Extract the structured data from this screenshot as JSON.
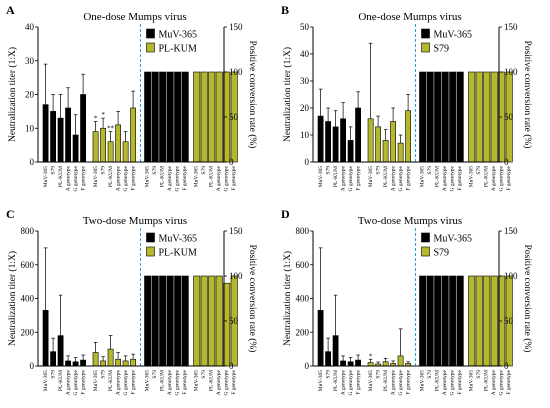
{
  "colors": {
    "black_bar": "#000000",
    "olive_bar": "#b5b82c",
    "divider": "#29a3d6",
    "axis": "#000000"
  },
  "chart_data": [
    {
      "panel": "A",
      "type": "bar",
      "title": "One-dose Mumps virus",
      "ylabel": "Neutralization titer (1:X)",
      "y2label": "Positive conversion rate (%)",
      "ylim": [
        0,
        40
      ],
      "yticks": [
        0,
        10,
        20,
        30,
        40
      ],
      "y2lim": [
        0,
        150
      ],
      "y2ticks": [
        0,
        50,
        100,
        150
      ],
      "legend": [
        "MuV-365",
        "PL-KUM"
      ],
      "categories": [
        "MuV-365",
        "S79",
        "PL-KUM",
        "A genotype",
        "G genotype",
        "F genotype"
      ],
      "titer_series": [
        {
          "name": "MuV-365",
          "values": [
            17,
            15,
            13,
            16,
            8,
            20
          ],
          "errors": [
            12,
            5,
            7,
            6,
            6,
            6
          ]
        },
        {
          "name": "PL-KUM",
          "values": [
            9,
            10,
            6,
            11,
            6,
            16
          ],
          "errors": [
            3,
            3,
            3,
            4,
            3,
            5
          ],
          "marks": [
            "*",
            "*",
            "**",
            "",
            "",
            ""
          ]
        }
      ],
      "conversion_series": [
        {
          "name": "MuV-365",
          "values": [
            100,
            100,
            100,
            100,
            100,
            100
          ]
        },
        {
          "name": "PL-KUM",
          "values": [
            100,
            100,
            100,
            100,
            100,
            100
          ]
        }
      ]
    },
    {
      "panel": "B",
      "type": "bar",
      "title": "One-dose Mumps virus",
      "ylabel": "Neutralization titer (1:X)",
      "y2label": "Positive conversion rate (%)",
      "ylim": [
        0,
        50
      ],
      "yticks": [
        0,
        10,
        20,
        30,
        40,
        50
      ],
      "y2lim": [
        0,
        150
      ],
      "y2ticks": [
        0,
        50,
        100,
        150
      ],
      "legend": [
        "MuV-365",
        "S79"
      ],
      "categories": [
        "MuV-365",
        "S79",
        "PL-KUM",
        "A genotype",
        "G genotype",
        "F genotype"
      ],
      "titer_series": [
        {
          "name": "MuV-365",
          "values": [
            17,
            15,
            13,
            16,
            8,
            20
          ],
          "errors": [
            10,
            5,
            6,
            6,
            5,
            6
          ]
        },
        {
          "name": "S79",
          "values": [
            16,
            13,
            8,
            15,
            7,
            19
          ],
          "errors": [
            28,
            4,
            4,
            5,
            3,
            6
          ],
          "marks": [
            "",
            "",
            "",
            "",
            "",
            ""
          ]
        }
      ],
      "conversion_series": [
        {
          "name": "MuV-365",
          "values": [
            100,
            100,
            100,
            100,
            100,
            100
          ]
        },
        {
          "name": "S79",
          "values": [
            100,
            100,
            100,
            100,
            100,
            100
          ]
        }
      ]
    },
    {
      "panel": "C",
      "type": "bar",
      "title": "Two-dose Mumps virus",
      "ylabel": "Neutralization titer (1:X)",
      "y2label": "Positive conversion rate (%)",
      "ylim": [
        0,
        800
      ],
      "yticks": [
        0,
        200,
        400,
        600,
        800
      ],
      "y2lim": [
        0,
        150
      ],
      "y2ticks": [
        0,
        50,
        100,
        150
      ],
      "legend": [
        "MuV-365",
        "PL-KUM"
      ],
      "categories": [
        "MuV-365",
        "S79",
        "PL-KUM",
        "A genotype",
        "G genotype",
        "F genotype"
      ],
      "titer_series": [
        {
          "name": "MuV-365",
          "values": [
            330,
            85,
            180,
            30,
            25,
            35
          ],
          "errors": [
            370,
            80,
            240,
            30,
            25,
            30
          ]
        },
        {
          "name": "PL-KUM",
          "values": [
            80,
            30,
            100,
            40,
            30,
            40
          ],
          "errors": [
            60,
            25,
            80,
            40,
            30,
            30
          ],
          "marks": [
            "",
            "",
            "",
            "",
            "",
            ""
          ]
        }
      ],
      "conversion_series": [
        {
          "name": "MuV-365",
          "values": [
            100,
            100,
            100,
            100,
            100,
            100
          ]
        },
        {
          "name": "PL-KUM",
          "values": [
            100,
            100,
            100,
            100,
            92,
            100
          ]
        }
      ]
    },
    {
      "panel": "D",
      "type": "bar",
      "title": "Two-dose Mumps virus",
      "ylabel": "Neutralization titer (1:X)",
      "y2label": "Positive conversion rate (%)",
      "ylim": [
        0,
        800
      ],
      "yticks": [
        0,
        200,
        400,
        600,
        800
      ],
      "y2lim": [
        0,
        150
      ],
      "y2ticks": [
        0,
        50,
        100,
        150
      ],
      "legend": [
        "MuV-365",
        "S79"
      ],
      "categories": [
        "MuV-365",
        "S79",
        "PL-KUM",
        "A genotype",
        "G genotype",
        "F genotype"
      ],
      "titer_series": [
        {
          "name": "MuV-365",
          "values": [
            330,
            85,
            180,
            30,
            25,
            35
          ],
          "errors": [
            370,
            80,
            240,
            30,
            25,
            30
          ]
        },
        {
          "name": "S79",
          "values": [
            20,
            12,
            25,
            15,
            60,
            15
          ],
          "errors": [
            20,
            12,
            20,
            15,
            160,
            10
          ],
          "marks": [
            "*",
            "",
            "",
            "",
            "",
            ""
          ]
        }
      ],
      "conversion_series": [
        {
          "name": "MuV-365",
          "values": [
            100,
            100,
            100,
            100,
            100,
            100
          ]
        },
        {
          "name": "S79",
          "values": [
            100,
            100,
            100,
            100,
            100,
            100
          ]
        }
      ]
    }
  ]
}
